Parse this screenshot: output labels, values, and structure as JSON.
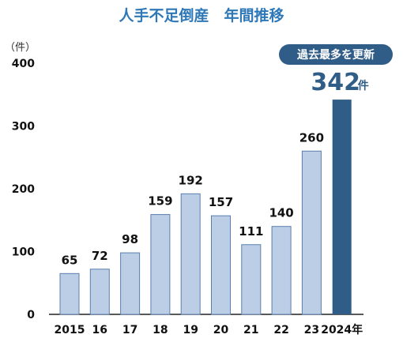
{
  "chart_data": {
    "type": "bar",
    "title": "人手不足倒産　年間推移",
    "y_unit": "（件）",
    "ylim": [
      0,
      400
    ],
    "yticks": [
      "0",
      "100",
      "200",
      "300",
      "400"
    ],
    "categories": [
      "2015",
      "16",
      "17",
      "18",
      "19",
      "20",
      "21",
      "22",
      "23",
      "2024年"
    ],
    "values": [
      65,
      72,
      98,
      159,
      192,
      157,
      111,
      140,
      260,
      342
    ],
    "value_labels": [
      "65",
      "72",
      "98",
      "159",
      "192",
      "157",
      "111",
      "140",
      "260",
      "342"
    ],
    "highlight_index": 9,
    "highlight_value_unit": "件",
    "badge": "過去最多を更新",
    "colors": {
      "bar": "#bccee6",
      "bar_stroke": "#5a7fae",
      "highlight": "#2f5d88",
      "title": "#2f78b7",
      "badge_bg": "#2f5d88"
    },
    "grid": false
  }
}
